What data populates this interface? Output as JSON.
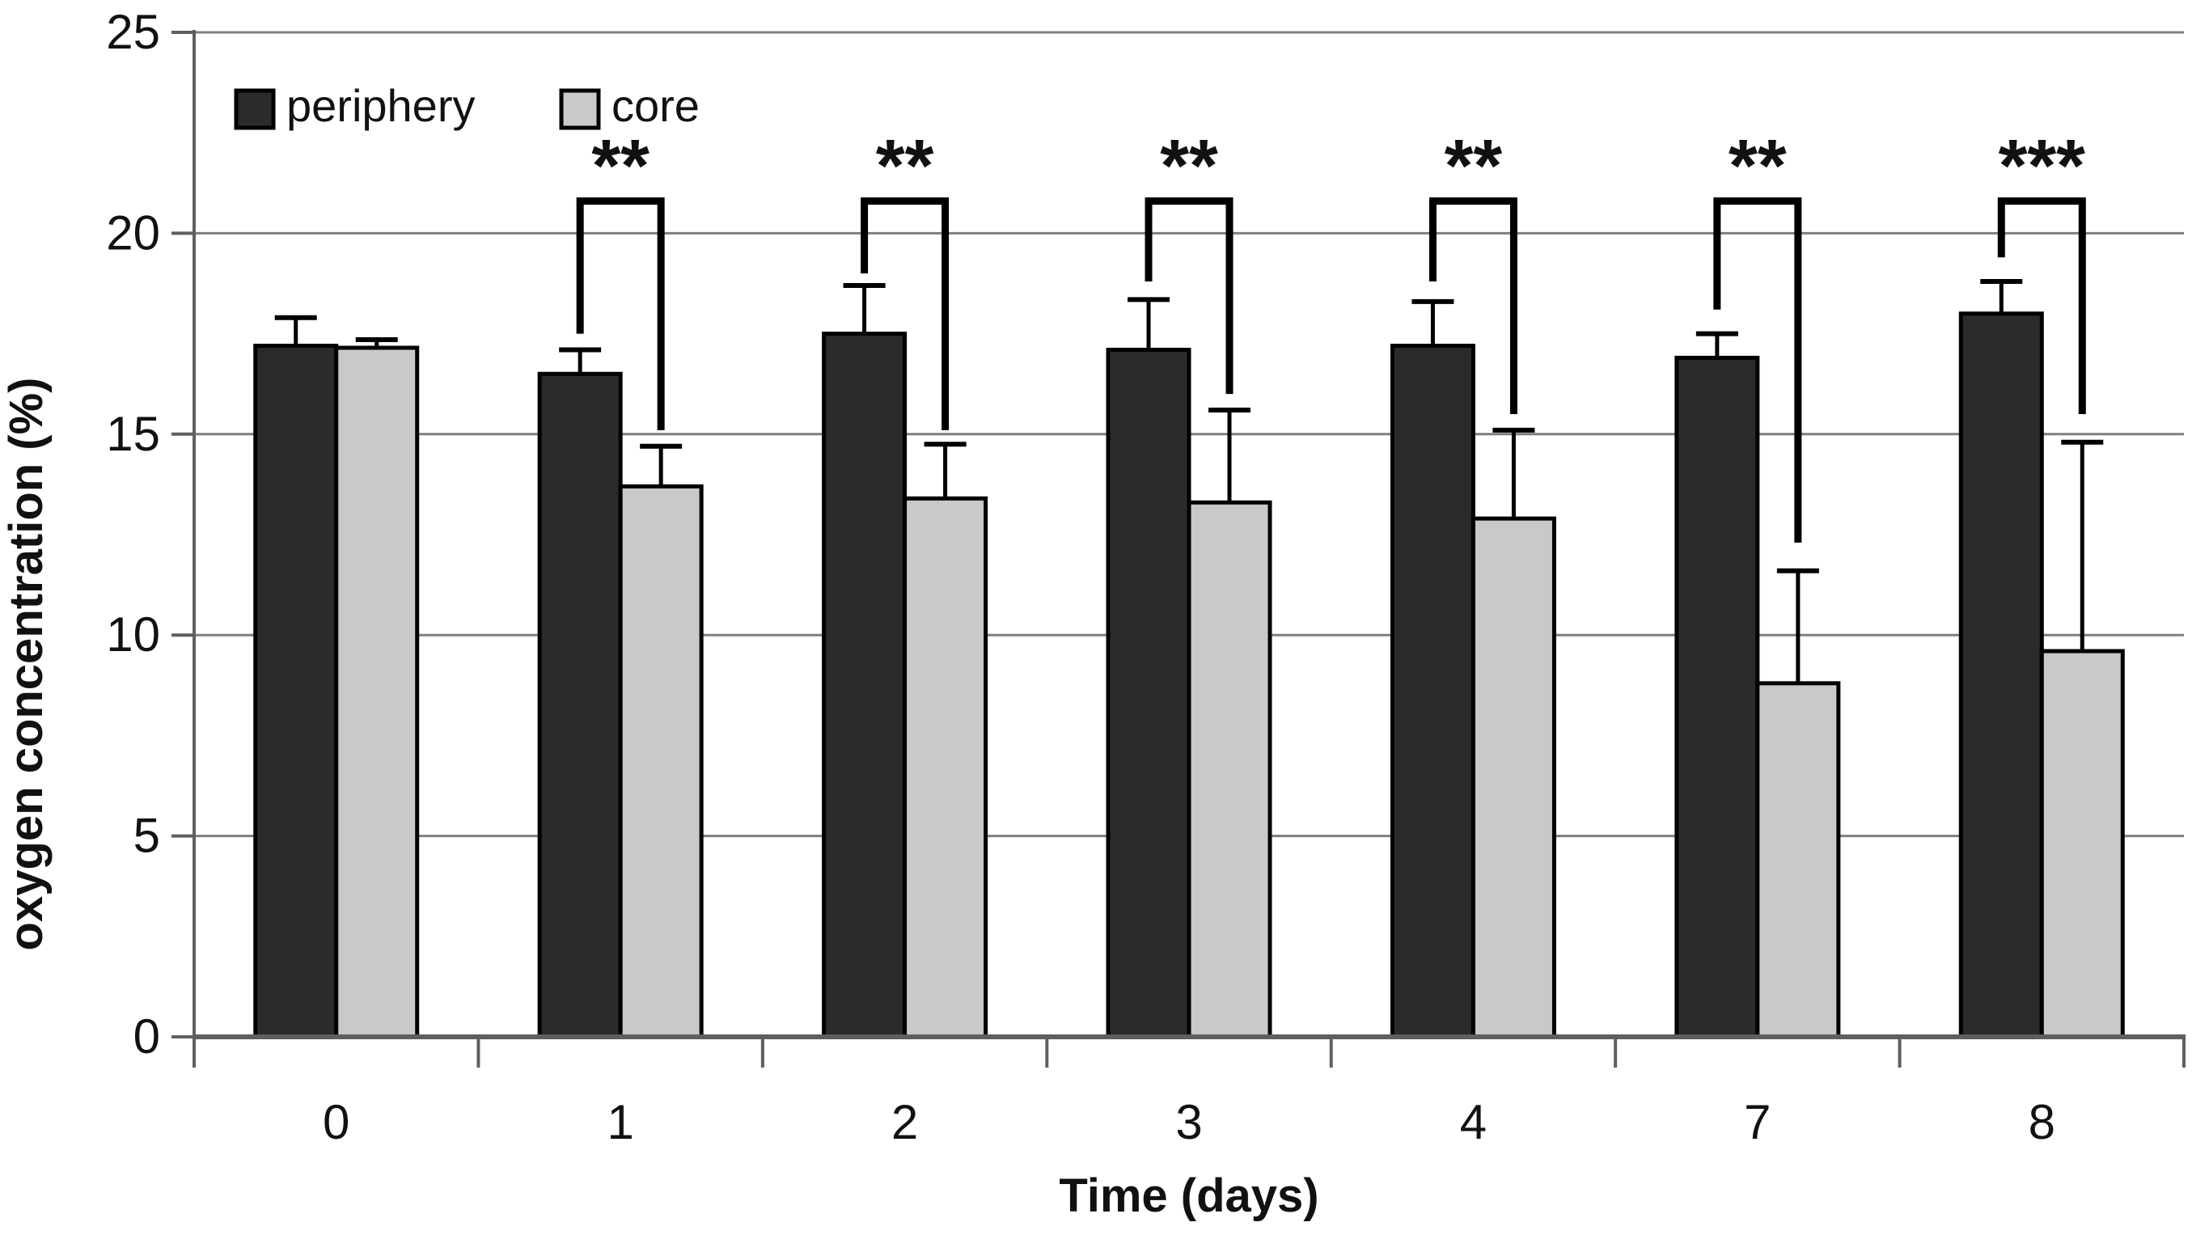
{
  "figure": {
    "background": "#ffffff",
    "text_color": "#111111",
    "gridline_color": "#7f7f7f",
    "axis_color": "#5f5f5f",
    "error_bar_color": "#000000",
    "bracket_color": "#000000"
  },
  "chart_data": {
    "type": "bar",
    "title": "",
    "xlabel": "Time (days)",
    "ylabel": "oxygen concentration (%)",
    "categories": [
      "0",
      "1",
      "2",
      "3",
      "4",
      "7",
      "8"
    ],
    "y_axis": {
      "min": 0,
      "max": 25,
      "tick_step": 5,
      "tick_labels": [
        "0",
        "5",
        "10",
        "15",
        "20",
        "25"
      ],
      "grid": true
    },
    "series": [
      {
        "name": "periphery",
        "color": "#2b2b2b",
        "edge_color": "#000000",
        "values": [
          17.2,
          16.5,
          17.5,
          17.1,
          17.2,
          16.9,
          18.0
        ],
        "errors_up": [
          0.7,
          0.6,
          1.2,
          1.25,
          1.1,
          0.6,
          0.8
        ]
      },
      {
        "name": "core",
        "color": "#c9c9c9",
        "edge_color": "#000000",
        "values": [
          17.15,
          13.7,
          13.4,
          13.3,
          12.9,
          8.8,
          9.6
        ],
        "errors_up": [
          0.2,
          1.0,
          1.35,
          2.3,
          2.2,
          2.8,
          5.2
        ]
      }
    ],
    "significance": [
      {
        "category": "1",
        "label": "**",
        "bracket_y": 20.8,
        "left_leg_to": 17.5,
        "right_leg_to": 15.1
      },
      {
        "category": "2",
        "label": "**",
        "bracket_y": 20.8,
        "left_leg_to": 19.0,
        "right_leg_to": 15.1
      },
      {
        "category": "3",
        "label": "**",
        "bracket_y": 20.8,
        "left_leg_to": 18.8,
        "right_leg_to": 16.0
      },
      {
        "category": "4",
        "label": "**",
        "bracket_y": 20.8,
        "left_leg_to": 18.8,
        "right_leg_to": 15.5
      },
      {
        "category": "7",
        "label": "**",
        "bracket_y": 20.8,
        "left_leg_to": 18.1,
        "right_leg_to": 12.3
      },
      {
        "category": "8",
        "label": "***",
        "bracket_y": 20.8,
        "left_leg_to": 19.4,
        "right_leg_to": 15.5
      }
    ],
    "legend": {
      "position": "top-left",
      "entries": [
        {
          "label": "periphery",
          "color": "#2b2b2b"
        },
        {
          "label": "core",
          "color": "#c9c9c9"
        }
      ]
    }
  }
}
